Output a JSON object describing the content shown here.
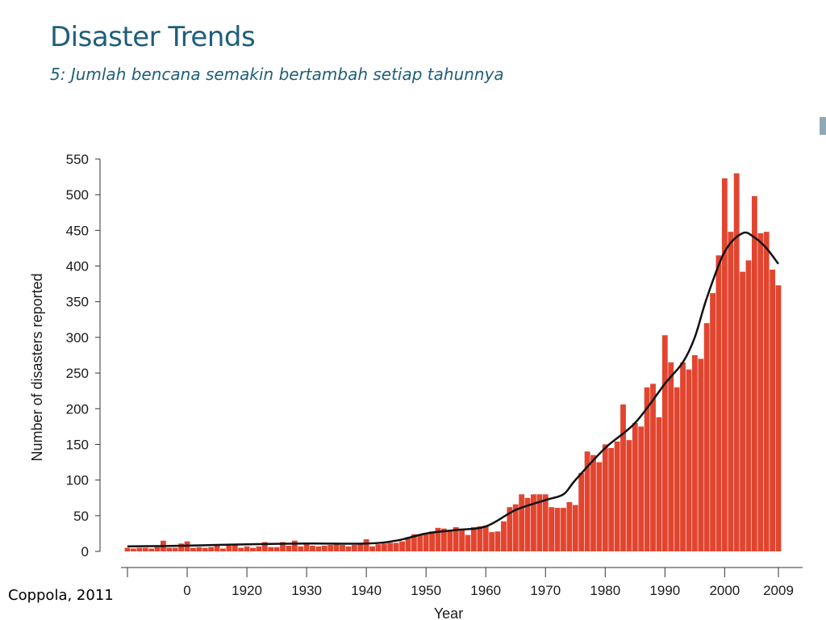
{
  "slide": {
    "title": "Disaster Trends",
    "subtitle": "5: Jumlah bencana semakin bertambah setiap tahunnya",
    "citation": "Coppola, 2011"
  },
  "colors": {
    "title": "#1f5f7a",
    "bar": "#e2452f",
    "trend_line": "#111111",
    "accent": "#8fa9b7"
  },
  "chart_data": {
    "type": "bar",
    "xlabel": "Year",
    "ylabel": "Number of disasters reported",
    "ylim": [
      0,
      550
    ],
    "y_ticks": [
      0,
      50,
      100,
      150,
      200,
      250,
      300,
      350,
      400,
      450,
      500,
      550
    ],
    "x_tick_labels": [
      {
        "year": 1900,
        "label": ""
      },
      {
        "year": 1910,
        "label": "0"
      },
      {
        "year": 1920,
        "label": "1920"
      },
      {
        "year": 1930,
        "label": "1930"
      },
      {
        "year": 1940,
        "label": "1940"
      },
      {
        "year": 1950,
        "label": "1950"
      },
      {
        "year": 1960,
        "label": "1960"
      },
      {
        "year": 1970,
        "label": "1970"
      },
      {
        "year": 1980,
        "label": "1980"
      },
      {
        "year": 1990,
        "label": "1990"
      },
      {
        "year": 2000,
        "label": "2000"
      },
      {
        "year": 2009,
        "label": "2009"
      }
    ],
    "grid": false,
    "legend": "none",
    "years": [
      1900,
      1901,
      1902,
      1903,
      1904,
      1905,
      1906,
      1907,
      1908,
      1909,
      1910,
      1911,
      1912,
      1913,
      1914,
      1915,
      1916,
      1917,
      1918,
      1919,
      1920,
      1921,
      1922,
      1923,
      1924,
      1925,
      1926,
      1927,
      1928,
      1929,
      1930,
      1931,
      1932,
      1933,
      1934,
      1935,
      1936,
      1937,
      1938,
      1939,
      1940,
      1941,
      1942,
      1943,
      1944,
      1945,
      1946,
      1947,
      1948,
      1949,
      1950,
      1951,
      1952,
      1953,
      1954,
      1955,
      1956,
      1957,
      1958,
      1959,
      1960,
      1961,
      1962,
      1963,
      1964,
      1965,
      1966,
      1967,
      1968,
      1969,
      1970,
      1971,
      1972,
      1973,
      1974,
      1975,
      1976,
      1977,
      1978,
      1979,
      1980,
      1981,
      1982,
      1983,
      1984,
      1985,
      1986,
      1987,
      1988,
      1989,
      1990,
      1991,
      1992,
      1993,
      1994,
      1995,
      1996,
      1997,
      1998,
      1999,
      2000,
      2001,
      2002,
      2003,
      2004,
      2005,
      2006,
      2007,
      2008,
      2009
    ],
    "values": [
      5,
      4,
      5,
      5,
      4,
      6,
      15,
      5,
      5,
      11,
      14,
      5,
      6,
      5,
      6,
      8,
      4,
      8,
      9,
      5,
      7,
      5,
      7,
      13,
      6,
      6,
      13,
      8,
      15,
      7,
      12,
      8,
      7,
      8,
      9,
      10,
      9,
      7,
      9,
      11,
      17,
      7,
      10,
      11,
      12,
      12,
      14,
      20,
      24,
      24,
      26,
      28,
      33,
      32,
      30,
      34,
      30,
      23,
      34,
      35,
      36,
      27,
      28,
      42,
      62,
      66,
      80,
      75,
      80,
      80,
      80,
      62,
      61,
      61,
      69,
      65,
      110,
      140,
      135,
      125,
      150,
      145,
      154,
      206,
      156,
      180,
      175,
      230,
      235,
      188,
      303,
      265,
      230,
      265,
      255,
      275,
      270,
      320,
      362,
      415,
      523,
      448,
      530,
      392,
      408,
      498,
      446,
      448,
      395,
      373
    ],
    "trend": [
      [
        1900,
        7
      ],
      [
        1910,
        8
      ],
      [
        1920,
        10
      ],
      [
        1930,
        11
      ],
      [
        1940,
        11
      ],
      [
        1945,
        15
      ],
      [
        1950,
        25
      ],
      [
        1955,
        30
      ],
      [
        1960,
        35
      ],
      [
        1965,
        58
      ],
      [
        1970,
        72
      ],
      [
        1973,
        80
      ],
      [
        1975,
        100
      ],
      [
        1980,
        145
      ],
      [
        1985,
        180
      ],
      [
        1990,
        235
      ],
      [
        1993,
        265
      ],
      [
        1995,
        300
      ],
      [
        1997,
        355
      ],
      [
        2000,
        420
      ],
      [
        2003,
        446
      ],
      [
        2005,
        440
      ],
      [
        2007,
        425
      ],
      [
        2009,
        403
      ]
    ]
  }
}
